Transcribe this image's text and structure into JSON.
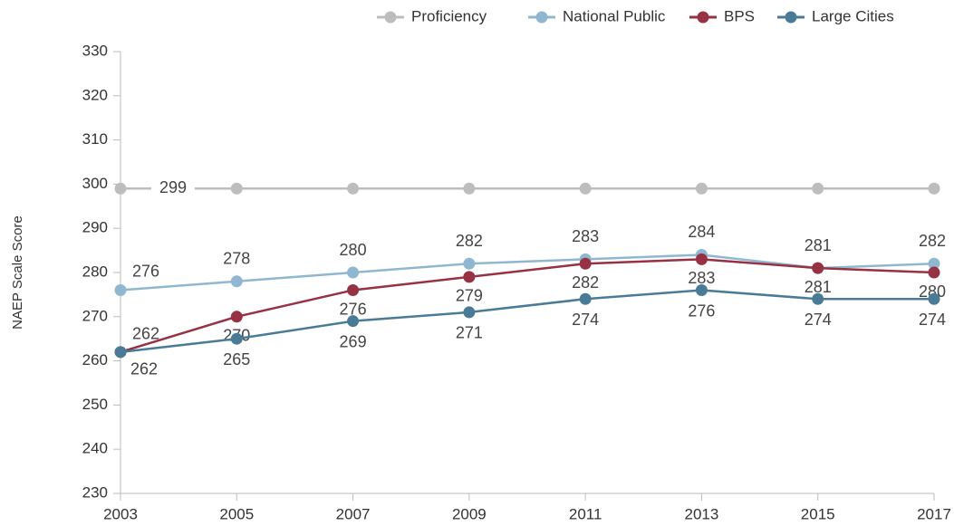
{
  "chart_data": {
    "type": "line",
    "y_label": "NAEP Scale Score",
    "x": [
      2003,
      2005,
      2007,
      2009,
      2011,
      2013,
      2015,
      2017
    ],
    "xlim": [
      2003,
      2017
    ],
    "xticks": [
      2003,
      2005,
      2007,
      2009,
      2011,
      2013,
      2015,
      2017
    ],
    "ylim": [
      230,
      330
    ],
    "yticks": [
      230,
      240,
      250,
      260,
      270,
      280,
      290,
      300,
      310,
      320,
      330
    ],
    "legend": "top-right",
    "series": [
      {
        "name": "Proficiency",
        "color": "#bdbdbd",
        "values": [
          299,
          299,
          299,
          299,
          299,
          299,
          299,
          299
        ]
      },
      {
        "name": "National Public",
        "color": "#8fb8d0",
        "values": [
          276,
          278,
          280,
          282,
          283,
          284,
          281,
          282
        ]
      },
      {
        "name": "BPS",
        "color": "#963243",
        "values": [
          262,
          270,
          276,
          279,
          282,
          283,
          281,
          280
        ]
      },
      {
        "name": "Large Cities",
        "color": "#4a7b96",
        "values": [
          262,
          265,
          269,
          271,
          274,
          276,
          274,
          274
        ]
      }
    ]
  }
}
